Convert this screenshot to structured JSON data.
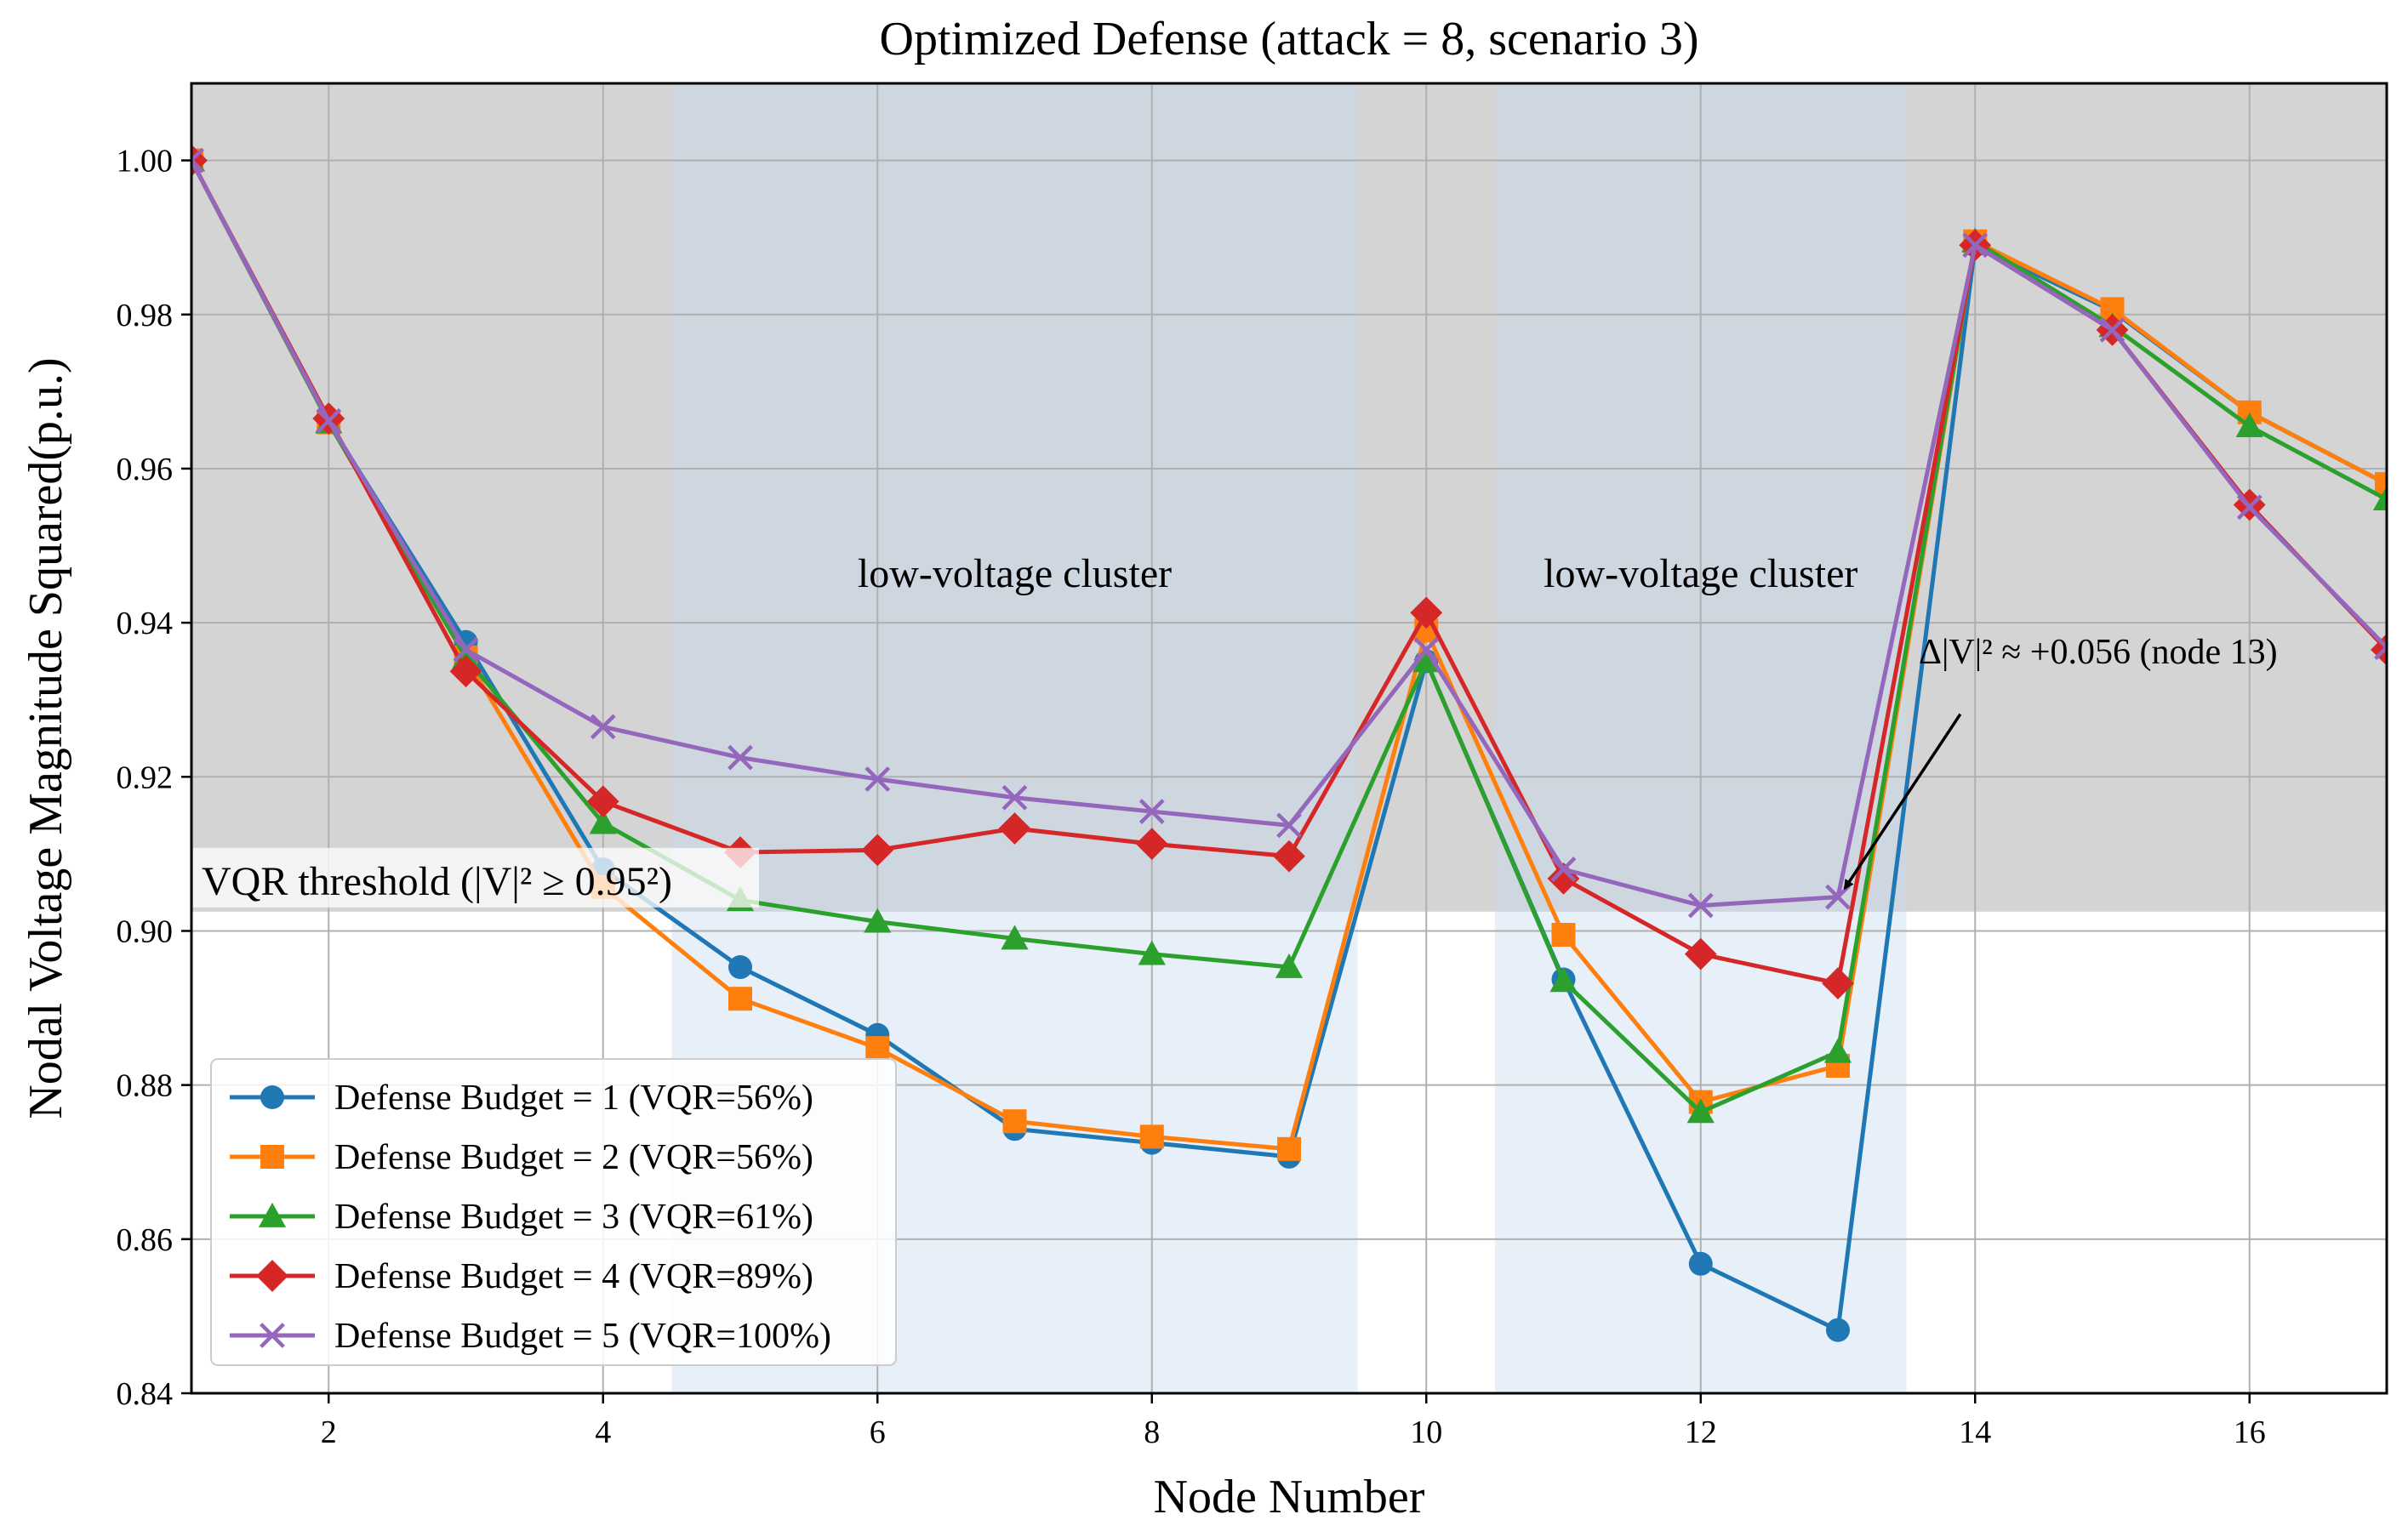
{
  "chart_data": {
    "type": "line",
    "title": "Optimized Defense (attack = 8, scenario 3)",
    "xlabel": "Node Number",
    "ylabel": "Nodal Voltage Magnitude Squared(p.u.)",
    "xlim": [
      1,
      17
    ],
    "ylim": [
      0.84,
      1.01
    ],
    "xticks": [
      2,
      4,
      6,
      8,
      10,
      12,
      14,
      16
    ],
    "yticks": [
      0.84,
      0.86,
      0.88,
      0.9,
      0.92,
      0.94,
      0.96,
      0.98,
      1.0
    ],
    "xtick_labels": [
      "2",
      "4",
      "6",
      "8",
      "10",
      "12",
      "14",
      "16"
    ],
    "ytick_labels": [
      "0.84",
      "0.86",
      "0.88",
      "0.90",
      "0.92",
      "0.94",
      "0.96",
      "0.98",
      "1.00"
    ],
    "grid": true,
    "threshold": {
      "value": 0.9025,
      "label": "VQR threshold (|V|² ≥ 0.95²)",
      "shade_color": "#d4d4d4"
    },
    "clusters": [
      {
        "x_start": 4.5,
        "x_end": 9.5,
        "label": "low-voltage cluster",
        "color": "#c5d9ee"
      },
      {
        "x_start": 10.5,
        "x_end": 13.5,
        "label": "low-voltage cluster",
        "color": "#c5d9ee"
      }
    ],
    "annotation": {
      "text": "Δ|V|² ≈ +0.056 (node 13)",
      "target_x": 13,
      "target_y": 0.9044,
      "text_x": 14.5,
      "text_y": 0.932
    },
    "x": [
      1,
      2,
      3,
      4,
      5,
      6,
      7,
      8,
      9,
      10,
      11,
      12,
      13,
      14,
      15,
      16,
      17
    ],
    "series": [
      {
        "name": "Defense Budget = 1 (VQR=56%)",
        "color": "#1f77b4",
        "marker": "circle",
        "values": [
          1.0,
          0.966,
          0.9375,
          0.908,
          0.8953,
          0.8865,
          0.8743,
          0.8725,
          0.8707,
          0.935,
          0.8937,
          0.8568,
          0.8482,
          0.989,
          0.9805,
          0.9673,
          0.958
        ]
      },
      {
        "name": "Defense Budget = 2 (VQR=56%)",
        "color": "#ff7f0e",
        "marker": "square",
        "values": [
          1.0,
          0.966,
          0.9355,
          0.9057,
          0.8912,
          0.8848,
          0.8753,
          0.8733,
          0.8717,
          0.939,
          0.8995,
          0.8778,
          0.8825,
          0.9895,
          0.9807,
          0.9673,
          0.958
        ]
      },
      {
        "name": "Defense Budget = 3 (VQR=61%)",
        "color": "#2ca02c",
        "marker": "triangle",
        "values": [
          1.0,
          0.966,
          0.9355,
          0.914,
          0.904,
          0.9012,
          0.899,
          0.897,
          0.8953,
          0.935,
          0.8935,
          0.8765,
          0.8843,
          0.9895,
          0.9785,
          0.9655,
          0.956
        ]
      },
      {
        "name": "Defense Budget = 4 (VQR=89%)",
        "color": "#d62728",
        "marker": "diamond",
        "values": [
          1.0,
          0.9665,
          0.9337,
          0.9168,
          0.9102,
          0.9105,
          0.9133,
          0.9113,
          0.9097,
          0.9413,
          0.9068,
          0.897,
          0.8932,
          0.989,
          0.978,
          0.9553,
          0.9365
        ]
      },
      {
        "name": "Defense Budget = 5 (VQR=100%)",
        "color": "#9467bd",
        "marker": "x",
        "values": [
          1.0,
          0.9662,
          0.9365,
          0.9265,
          0.9225,
          0.9197,
          0.9173,
          0.9155,
          0.9137,
          0.9365,
          0.908,
          0.9033,
          0.9044,
          0.989,
          0.978,
          0.955,
          0.9368
        ]
      }
    ]
  }
}
